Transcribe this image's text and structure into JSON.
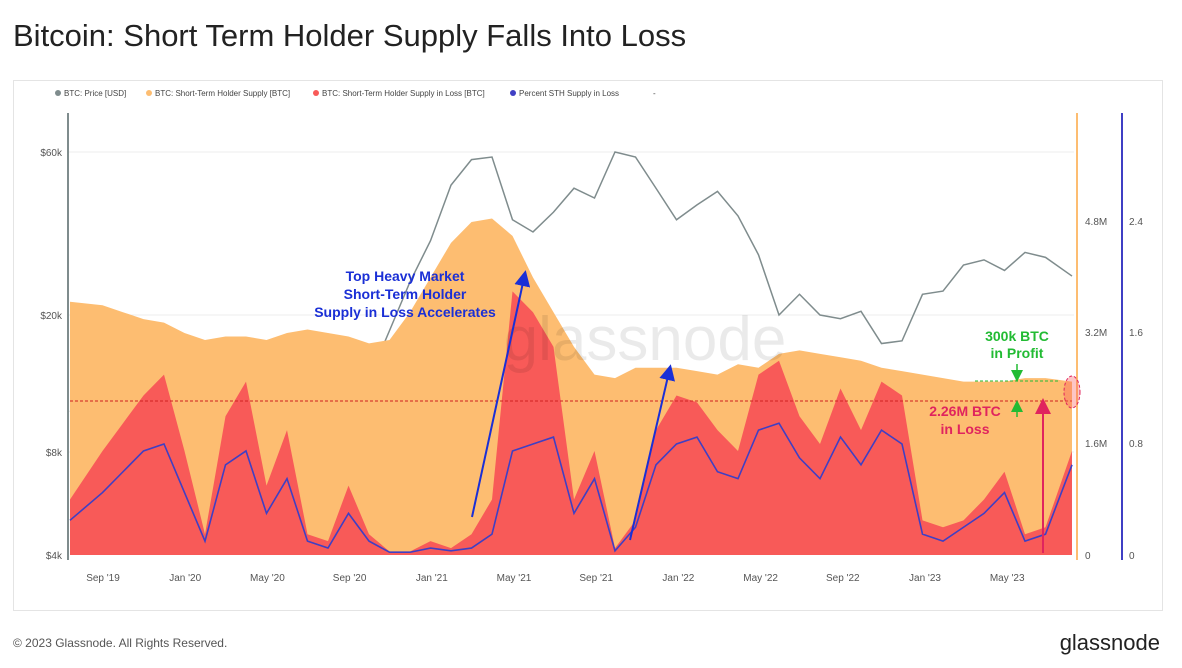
{
  "title": "Bitcoin: Short Term Holder Supply Falls Into Loss",
  "footer": "© 2023 Glassnode. All Rights Reserved.",
  "brand": "glassnode",
  "watermark": "glassnode",
  "colors": {
    "price": "#7f8c8d",
    "supply": "#fdbd71",
    "loss": "#f85a58",
    "percent": "#3f3fc4"
  },
  "chart_data": {
    "type": "area",
    "title": "Bitcoin: Short Term Holder Supply Falls Into Loss",
    "legend": [
      "BTC: Price [USD]",
      "BTC: Short-Term Holder Supply [BTC]",
      "BTC: Short-Term Holder Supply in Loss [BTC]",
      "Percent STH Supply in Loss",
      "-"
    ],
    "legend_position": "top-left",
    "x": [
      "2019-08",
      "2019-09",
      "2019-10",
      "2019-11",
      "2019-12",
      "2020-01",
      "2020-02",
      "2020-03",
      "2020-04",
      "2020-05",
      "2020-06",
      "2020-07",
      "2020-08",
      "2020-09",
      "2020-10",
      "2020-11",
      "2020-12",
      "2021-01",
      "2021-02",
      "2021-03",
      "2021-04",
      "2021-05",
      "2021-06",
      "2021-07",
      "2021-08",
      "2021-09",
      "2021-10",
      "2021-11",
      "2021-12",
      "2022-01",
      "2022-02",
      "2022-03",
      "2022-04",
      "2022-05",
      "2022-06",
      "2022-07",
      "2022-08",
      "2022-09",
      "2022-10",
      "2022-11",
      "2022-12",
      "2023-01",
      "2023-02",
      "2023-03",
      "2023-04",
      "2023-05",
      "2023-06",
      "2023-07",
      "2023-08"
    ],
    "x_ticks": [
      "Sep '19",
      "Jan '20",
      "May '20",
      "Sep '20",
      "Jan '21",
      "May '21",
      "Sep '21",
      "Jan '22",
      "May '22",
      "Sep '22",
      "Jan '23",
      "May '23"
    ],
    "y_left": {
      "scale": "log",
      "ticks": [
        "$4k",
        "$8k",
        "$20k",
        "$60k"
      ]
    },
    "y_right1": {
      "ticks": [
        "0",
        "1.6M",
        "3.2M",
        "4.8M"
      ],
      "range": [
        0,
        6400000
      ]
    },
    "y_right2": {
      "ticks": [
        "0",
        "0.8",
        "1.6",
        "2.4"
      ],
      "range": [
        0,
        3.2
      ]
    },
    "series": [
      {
        "name": "BTC: Price [USD]",
        "unit": "k USD",
        "values": [
          10.5,
          9,
          8.5,
          8,
          7.2,
          8.5,
          9.5,
          6.5,
          7.5,
          9.3,
          9.3,
          10.5,
          11.5,
          10.7,
          13,
          18,
          25,
          33,
          48,
          57,
          58,
          38,
          35,
          40,
          47,
          44,
          60,
          58,
          47,
          38,
          42,
          46,
          39,
          30,
          20,
          23,
          20,
          19.5,
          20.5,
          16.5,
          16.8,
          23,
          23.5,
          28,
          29,
          27,
          30.5,
          29.5,
          26
        ]
      },
      {
        "name": "BTC: Short-Term Holder Supply [BTC]",
        "unit": "M BTC",
        "values": [
          3.65,
          3.6,
          3.5,
          3.4,
          3.35,
          3.2,
          3.1,
          3.15,
          3.15,
          3.1,
          3.2,
          3.25,
          3.2,
          3.15,
          3.05,
          3.1,
          3.5,
          4.0,
          4.5,
          4.8,
          4.85,
          4.6,
          4.0,
          3.5,
          3.0,
          2.6,
          2.55,
          2.7,
          2.7,
          2.7,
          2.65,
          2.6,
          2.75,
          2.7,
          2.9,
          2.95,
          2.9,
          2.85,
          2.8,
          2.7,
          2.65,
          2.6,
          2.55,
          2.5,
          2.5,
          2.5,
          2.55,
          2.55,
          2.5
        ]
      },
      {
        "name": "BTC: Short-Term Holder Supply in Loss [BTC]",
        "unit": "M BTC",
        "values": [
          0.8,
          1.5,
          1.9,
          2.3,
          2.6,
          1.5,
          0.3,
          2.0,
          2.5,
          1.0,
          1.8,
          0.3,
          0.2,
          1.0,
          0.3,
          0.05,
          0.05,
          0.2,
          0.1,
          0.3,
          0.8,
          3.8,
          3.5,
          3.0,
          0.8,
          1.5,
          0.1,
          0.5,
          1.8,
          2.3,
          2.2,
          1.8,
          1.5,
          2.6,
          2.8,
          2.0,
          1.6,
          2.4,
          1.8,
          2.5,
          2.3,
          0.5,
          0.4,
          0.5,
          0.8,
          1.2,
          0.3,
          0.4,
          1.5
        ]
      },
      {
        "name": "Percent STH Supply in Loss",
        "values": [
          0.25,
          0.45,
          0.6,
          0.75,
          0.8,
          0.45,
          0.1,
          0.65,
          0.75,
          0.3,
          0.55,
          0.1,
          0.05,
          0.3,
          0.1,
          0.02,
          0.02,
          0.05,
          0.03,
          0.05,
          0.15,
          0.75,
          0.8,
          0.85,
          0.3,
          0.55,
          0.03,
          0.2,
          0.65,
          0.8,
          0.85,
          0.6,
          0.55,
          0.9,
          0.95,
          0.7,
          0.55,
          0.85,
          0.65,
          0.9,
          0.8,
          0.15,
          0.1,
          0.2,
          0.3,
          0.45,
          0.1,
          0.15,
          0.65
        ]
      }
    ],
    "annotations": {
      "top_heavy": [
        "Top Heavy Market",
        "Short-Term Holder",
        "Supply in Loss Accelerates"
      ],
      "profit": [
        "300k BTC",
        "in Profit"
      ],
      "loss": [
        "2.26M BTC",
        "in Loss"
      ]
    }
  }
}
